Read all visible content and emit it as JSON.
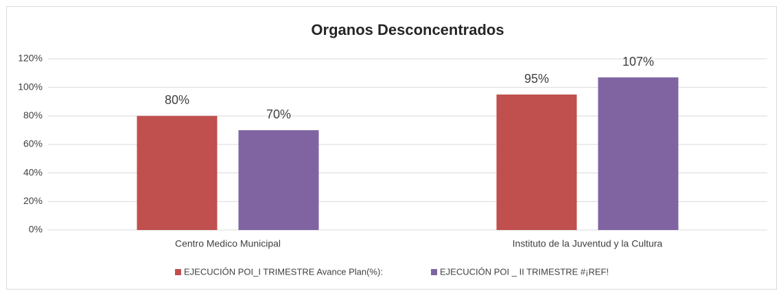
{
  "chart_data": {
    "type": "bar",
    "title": "Organos Desconcentrados",
    "categories": [
      "Centro Medico Municipal",
      "Instituto de la Juventud y la Cultura"
    ],
    "series": [
      {
        "name": "EJECUCIÓN POI_I TRIMESTRE Avance Plan(%):",
        "color": "#c0504d",
        "values": [
          80,
          95
        ],
        "value_labels": [
          "80%",
          "95%"
        ]
      },
      {
        "name": "EJECUCIÓN POI _ II TRIMESTRE #¡REF!",
        "color": "#8064a2",
        "values": [
          70,
          107
        ],
        "value_labels": [
          "70%",
          "107%"
        ]
      }
    ],
    "ylim": [
      0,
      120
    ],
    "yticks": [
      {
        "value": 0,
        "label": "0%"
      },
      {
        "value": 20,
        "label": "20%"
      },
      {
        "value": 40,
        "label": "40%"
      },
      {
        "value": 60,
        "label": "60%"
      },
      {
        "value": 80,
        "label": "80%"
      },
      {
        "value": 100,
        "label": "100%"
      },
      {
        "value": 120,
        "label": "120%"
      }
    ],
    "grid": true,
    "legend": "bottom"
  }
}
